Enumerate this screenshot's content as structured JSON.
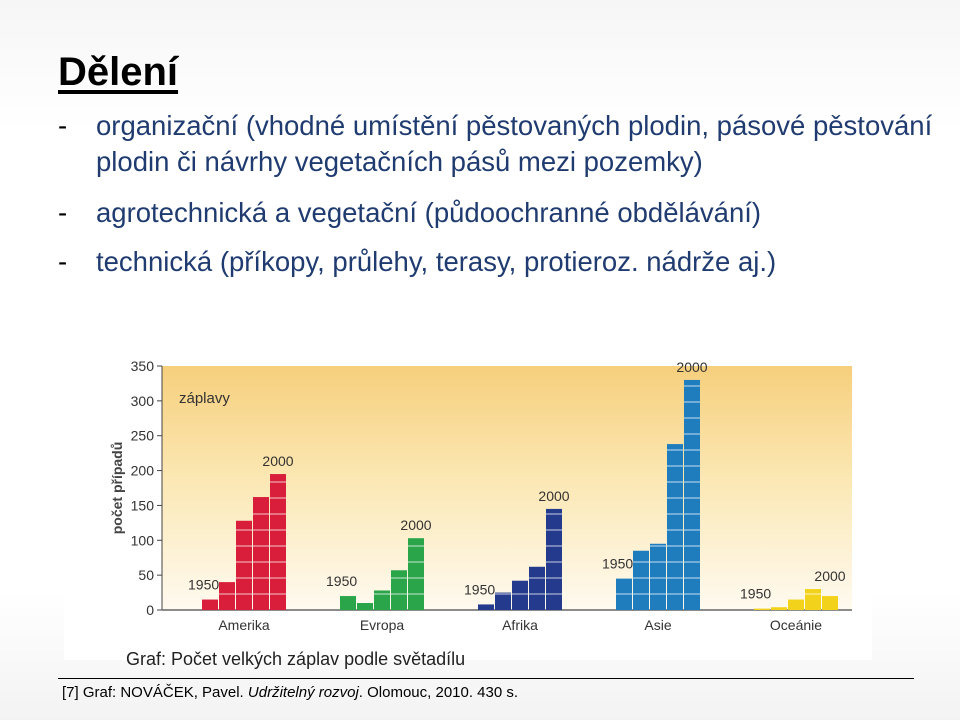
{
  "slide": {
    "title": "Dělení",
    "bullets": [
      "organizační (vhodné umístění pěstovaných plodin, pásové pěstování plodin či návrhy vegetačních pásů mezi pozemky)",
      "agrotechnická a vegetační (půdoochranné obdělávání)",
      "technická (příkopy, průlehy, terasy, protieroz. nádrže aj.)"
    ],
    "bullet_marker": "-",
    "caption": "Graf: Počet velkých záplav podle světadílu",
    "source_prefix": "[7] Graf: NOVÁČEK, Pavel. ",
    "source_italic": "Udržitelný rozvoj",
    "source_suffix": ". Olomouc, 2010. 430 s."
  },
  "chart_data": {
    "type": "bar",
    "legend_text": "záplavy",
    "ylabel": "počet případů",
    "xlabel": "",
    "ylim": [
      0,
      350
    ],
    "yticks": [
      0,
      50,
      100,
      150,
      200,
      250,
      300,
      350
    ],
    "groups": [
      {
        "name": "Amerika",
        "color": "#d81e3a",
        "values": [
          15,
          40,
          128,
          162,
          195
        ],
        "start_label": "1950",
        "end_label": "2000"
      },
      {
        "name": "Evropa",
        "color": "#2aa54a",
        "values": [
          20,
          10,
          28,
          57,
          103
        ],
        "start_label": "1950",
        "end_label": "2000"
      },
      {
        "name": "Afrika",
        "color": "#243a8c",
        "values": [
          8,
          25,
          42,
          62,
          145
        ],
        "start_label": "1950",
        "end_label": "2000"
      },
      {
        "name": "Asie",
        "color": "#1f7dbd",
        "values": [
          45,
          85,
          95,
          238,
          330
        ],
        "start_label": "1950",
        "end_label": "2000"
      },
      {
        "name": "Oceánie",
        "color": "#f3d21b",
        "values": [
          2,
          4,
          15,
          30,
          20
        ],
        "start_label": "1950",
        "end_label": "2000"
      }
    ],
    "grid": false,
    "background_gradient": [
      "#ffffff",
      "#fbe9b8",
      "#f6cf7c"
    ]
  }
}
